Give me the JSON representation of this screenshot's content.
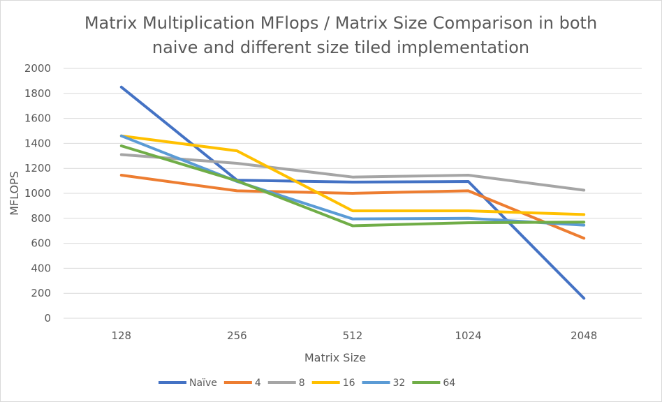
{
  "chart_data": {
    "type": "line",
    "title_lines": [
      "Matrix Multiplication MFlops / Matrix Size Comparison in both",
      "naive and different size tiled implementation"
    ],
    "xlabel": "Matrix Size",
    "ylabel": "MFLOPS",
    "categories": [
      "128",
      "256",
      "512",
      "1024",
      "2048"
    ],
    "ylim": [
      0,
      2000
    ],
    "ytick_step": 200,
    "grid": true,
    "legend_position": "bottom",
    "series": [
      {
        "name": "Naïve",
        "color": "#4472C4",
        "values": [
          1850,
          1105,
          1090,
          1095,
          160
        ]
      },
      {
        "name": "4",
        "color": "#ED7D31",
        "values": [
          1145,
          1020,
          1000,
          1020,
          640
        ]
      },
      {
        "name": "8",
        "color": "#A5A5A5",
        "values": [
          1310,
          1240,
          1130,
          1145,
          1025
        ]
      },
      {
        "name": "16",
        "color": "#FFC000",
        "values": [
          1460,
          1340,
          860,
          860,
          830
        ]
      },
      {
        "name": "32",
        "color": "#5B9BD5",
        "values": [
          1460,
          1095,
          795,
          800,
          745
        ]
      },
      {
        "name": "64",
        "color": "#70AD47",
        "values": [
          1380,
          1100,
          740,
          765,
          770
        ]
      }
    ]
  }
}
